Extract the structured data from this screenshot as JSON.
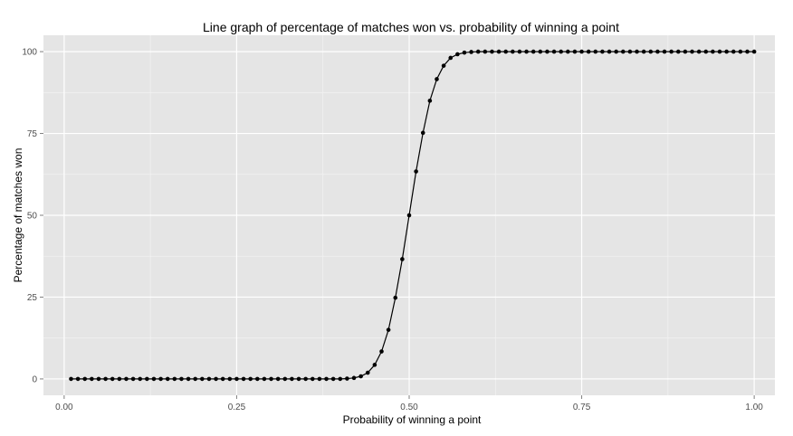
{
  "chart_data": {
    "type": "line",
    "title": "Line graph of percentage of matches won vs. probability of winning a point",
    "xlabel": "Probability of winning a point",
    "ylabel": "Percentage of matches won",
    "xlim": [
      -0.03,
      1.03
    ],
    "ylim": [
      -5,
      105
    ],
    "xticks": [
      0.0,
      0.25,
      0.5,
      0.75,
      1.0
    ],
    "xtick_labels": [
      "0.00",
      "0.25",
      "0.50",
      "0.75",
      "1.00"
    ],
    "yticks": [
      0,
      25,
      50,
      75,
      100
    ],
    "ytick_labels": [
      "0",
      "25",
      "50",
      "75",
      "100"
    ],
    "grid": true,
    "legend": "none",
    "colors": {
      "panel": "#e5e5e5",
      "grid_major": "#ffffff",
      "grid_minor": "#f2f2f2",
      "line": "#000000",
      "points": "#000000",
      "tick_text": "#4d4d4d"
    },
    "series": [
      {
        "x": [
          0.01,
          0.02,
          0.03,
          0.04,
          0.05,
          0.06,
          0.07,
          0.08,
          0.09,
          0.1,
          0.11,
          0.12,
          0.13,
          0.14,
          0.15,
          0.16,
          0.17,
          0.18,
          0.19,
          0.2,
          0.21,
          0.22,
          0.23,
          0.24,
          0.25,
          0.26,
          0.27,
          0.28,
          0.29,
          0.3,
          0.31,
          0.32,
          0.33,
          0.34,
          0.35,
          0.36,
          0.37,
          0.38,
          0.39,
          0.4,
          0.41,
          0.42,
          0.43,
          0.44,
          0.45,
          0.46,
          0.47,
          0.48,
          0.49,
          0.5,
          0.51,
          0.52,
          0.53,
          0.54,
          0.55,
          0.56,
          0.57,
          0.58,
          0.59,
          0.6,
          0.61,
          0.62,
          0.63,
          0.64,
          0.65,
          0.66,
          0.67,
          0.68,
          0.69,
          0.7,
          0.71,
          0.72,
          0.73,
          0.74,
          0.75,
          0.76,
          0.77,
          0.78,
          0.79,
          0.8,
          0.81,
          0.82,
          0.83,
          0.84,
          0.85,
          0.86,
          0.87,
          0.88,
          0.89,
          0.9,
          0.91,
          0.92,
          0.93,
          0.94,
          0.95,
          0.96,
          0.97,
          0.98,
          0.99,
          1.0
        ],
        "y": [
          0,
          0,
          0,
          0,
          0,
          0,
          0,
          0,
          0,
          0,
          0,
          0,
          0,
          0,
          0,
          0,
          0,
          0,
          0,
          0,
          0,
          0,
          0,
          0,
          0,
          0,
          0,
          0,
          0,
          0,
          0,
          0,
          0,
          0,
          0,
          0,
          0,
          0,
          0,
          0,
          0.1,
          0.3,
          0.8,
          1.9,
          4.3,
          8.4,
          15,
          24.8,
          36.6,
          50,
          63.4,
          75.2,
          85,
          91.6,
          95.7,
          98.1,
          99.2,
          99.7,
          99.9,
          100,
          100,
          100,
          100,
          100,
          100,
          100,
          100,
          100,
          100,
          100,
          100,
          100,
          100,
          100,
          100,
          100,
          100,
          100,
          100,
          100,
          100,
          100,
          100,
          100,
          100,
          100,
          100,
          100,
          100,
          100,
          100,
          100,
          100,
          100,
          100,
          100,
          100,
          100,
          100,
          100
        ]
      }
    ]
  }
}
